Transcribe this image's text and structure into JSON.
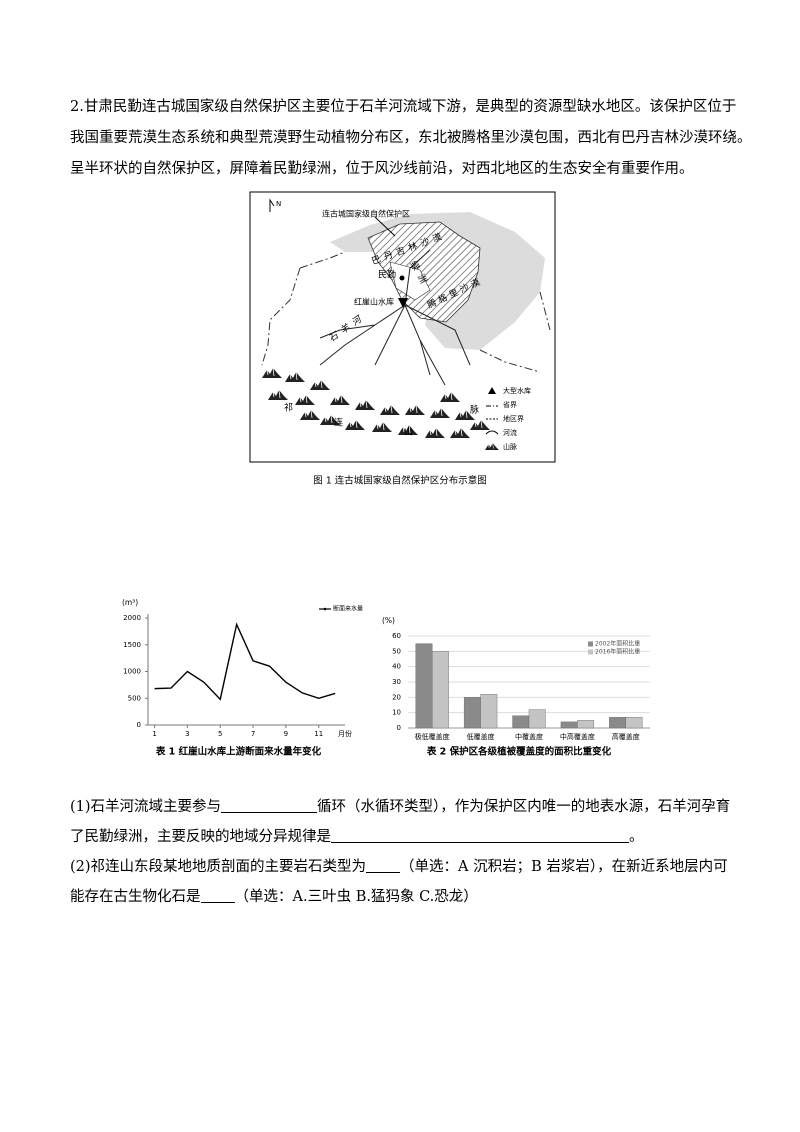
{
  "intro": {
    "lines": [
      "2.甘肃民勤连古城国家级自然保护区主要位于石羊河流域下游，是典型的资源型缺水地区。该保护区位于",
      "我国重要荒漠生态系统和典型荒漠野生动植物分布区，东北被腾格里沙漠包围，西北有巴丹吉林沙漠环绕。",
      "呈半环状的自然保护区，屏障着民勤绿洲，位于风沙线前沿，对西北地区的生态安全有重要作用。"
    ]
  },
  "map": {
    "north": "N",
    "reserve": "连古城国家级自然保护区",
    "badain": "巴丹吉林沙漠",
    "tengger": "腾格里沙漠",
    "minqin": "民勤",
    "lu": "绿洲",
    "reservoir": "红崖山水库",
    "river": "石羊河",
    "qi": "祁",
    "lian": "连",
    "shan": "山",
    "mai": "脉",
    "legend": [
      "大型水库",
      "省界",
      "地区界",
      "河流",
      "山脉"
    ],
    "caption": "图 1  连古城国家级自然保护区分布示意图"
  },
  "chart_data": [
    {
      "type": "line",
      "y_label": "(m³)",
      "x_label": "月份",
      "x": [
        1,
        2,
        3,
        4,
        5,
        6,
        7,
        8,
        9,
        10,
        11,
        12
      ],
      "series": [
        {
          "name": "断面来水量",
          "color": "#000000",
          "values": [
            680,
            690,
            1000,
            800,
            480,
            1880,
            1200,
            1100,
            800,
            600,
            500,
            590
          ]
        }
      ],
      "xlim": [
        0.6,
        12.6
      ],
      "xticks": [
        1,
        3,
        5,
        7,
        9,
        11
      ],
      "ylim": [
        0,
        2000
      ],
      "yticks": [
        0,
        500,
        1000,
        1500,
        2000
      ],
      "grid": false,
      "legend": "top-right",
      "caption": "表 1  红崖山水库上游断面来水量年变化"
    },
    {
      "type": "bar",
      "y_label": "(%)",
      "categories": [
        "极低覆盖度",
        "低覆盖度",
        "中覆盖度",
        "中高覆盖度",
        "高覆盖度"
      ],
      "series": [
        {
          "name": "2002年面积比重",
          "color": "#8a8a8a",
          "values": [
            55,
            20,
            8,
            4,
            7
          ]
        },
        {
          "name": "2016年面积比重",
          "color": "#c4c4c4",
          "values": [
            50,
            22,
            12,
            5,
            7
          ]
        }
      ],
      "ylim": [
        0,
        60
      ],
      "yticks": [
        0,
        10,
        20,
        30,
        40,
        50,
        60
      ],
      "grid": true,
      "legend": "top-right",
      "caption": "表 2  保护区各级植被覆盖度的面积比重变化"
    }
  ],
  "questions": [
    {
      "parts": [
        "(1)石羊河流域主要参与",
        "循环（水循环类型），作为保护区内唯一的地表水源，石羊河孕育了民勤绿洲，主要反映的地域分异规律是",
        "。"
      ]
    },
    {
      "parts": [
        "(2)祁连山东段某地地质剖面的主要岩石类型为",
        "（单选：A 沉积岩；B 岩浆岩），在新近系地层内可能存在古生物化石是",
        "（单选：A.三叶虫   B.猛犸象   C.恐龙）"
      ]
    }
  ]
}
